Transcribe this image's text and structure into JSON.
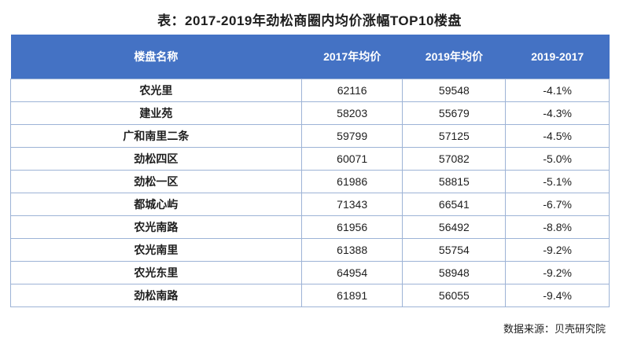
{
  "title": "表：2017-2019年劲松商圈内均价涨幅TOP10楼盘",
  "source_note": "数据来源：贝壳研究院",
  "colors": {
    "header_bg": "#4472c4",
    "header_text": "#ffffff",
    "border": "#9db3d6",
    "body_text": "#1e1e1e",
    "row_bg": "#ffffff"
  },
  "chart_data": {
    "type": "table",
    "title": "表：2017-2019年劲松商圈内均价涨幅TOP10楼盘",
    "columns": [
      "楼盘名称",
      "2017年均价",
      "2019年均价",
      "2019-2017"
    ],
    "rows": [
      [
        "农光里",
        "62116",
        "59548",
        "-4.1%"
      ],
      [
        "建业苑",
        "58203",
        "55679",
        "-4.3%"
      ],
      [
        "广和南里二条",
        "59799",
        "57125",
        "-4.5%"
      ],
      [
        "劲松四区",
        "60071",
        "57082",
        "-5.0%"
      ],
      [
        "劲松一区",
        "61986",
        "58815",
        "-5.1%"
      ],
      [
        "都城心屿",
        "71343",
        "66541",
        "-6.7%"
      ],
      [
        "农光南路",
        "61956",
        "56492",
        "-8.8%"
      ],
      [
        "农光南里",
        "61388",
        "55754",
        "-9.2%"
      ],
      [
        "农光东里",
        "64954",
        "58948",
        "-9.2%"
      ],
      [
        "劲松南路",
        "61891",
        "56055",
        "-9.4%"
      ]
    ],
    "layout": {
      "header_position": "top",
      "cell_alignment": "center",
      "grid": true
    }
  }
}
